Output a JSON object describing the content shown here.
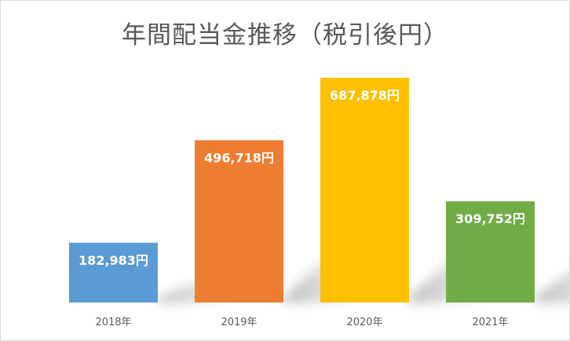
{
  "chart_data": {
    "type": "bar",
    "title": "年間配当金推移（税引後円）",
    "categories": [
      "2018年",
      "2019年",
      "2020年",
      "2021年"
    ],
    "values": [
      182983,
      496718,
      687878,
      309752
    ],
    "data_labels": [
      "182,983円",
      "496,718円",
      "687,878円",
      "309,752円"
    ],
    "colors": [
      "#5B9BD5",
      "#ED7D31",
      "#FFC000",
      "#70AD47"
    ],
    "xlabel": "",
    "ylabel": "",
    "ylim": [
      0,
      800000
    ],
    "grid": false,
    "legend": "none"
  }
}
